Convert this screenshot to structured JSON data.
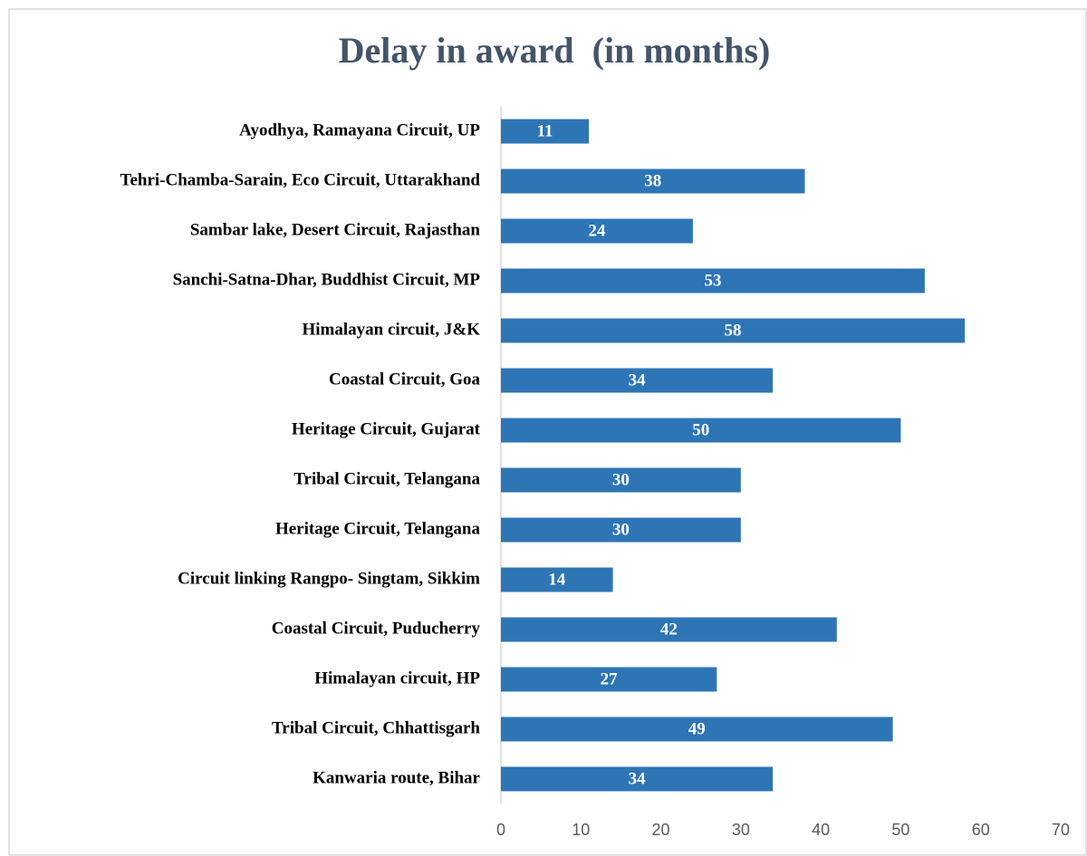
{
  "chart_data": {
    "type": "bar",
    "orientation": "horizontal",
    "title": "Delay in award  (in months)",
    "categories": [
      "Ayodhya, Ramayana Circuit, UP",
      "Tehri-Chamba-Sarain, Eco Circuit, Uttarakhand",
      "Sambar  lake,  Desert Circuit, Rajasthan",
      "Sanchi-Satna-Dhar, Buddhist Circuit, MP",
      "Himalayan circuit, J&K",
      "Coastal Circuit, Goa",
      "Heritage Circuit, Gujarat",
      "Tribal Circuit, Telangana",
      "Heritage Circuit, Telangana",
      "Circuit linking Rangpo- Singtam, Sikkim",
      "Coastal Circuit, Puducherry",
      "Himalayan circuit, HP",
      "Tribal Circuit, Chhattisgarh",
      "Kanwaria route, Bihar"
    ],
    "values": [
      11,
      38,
      24,
      53,
      58,
      34,
      50,
      30,
      30,
      14,
      42,
      27,
      49,
      34
    ],
    "color": "#2e75b6",
    "data_labels": true,
    "xlim": [
      0,
      70
    ],
    "xticks": [
      0,
      10,
      20,
      30,
      40,
      50,
      60,
      70
    ],
    "grid": false
  }
}
